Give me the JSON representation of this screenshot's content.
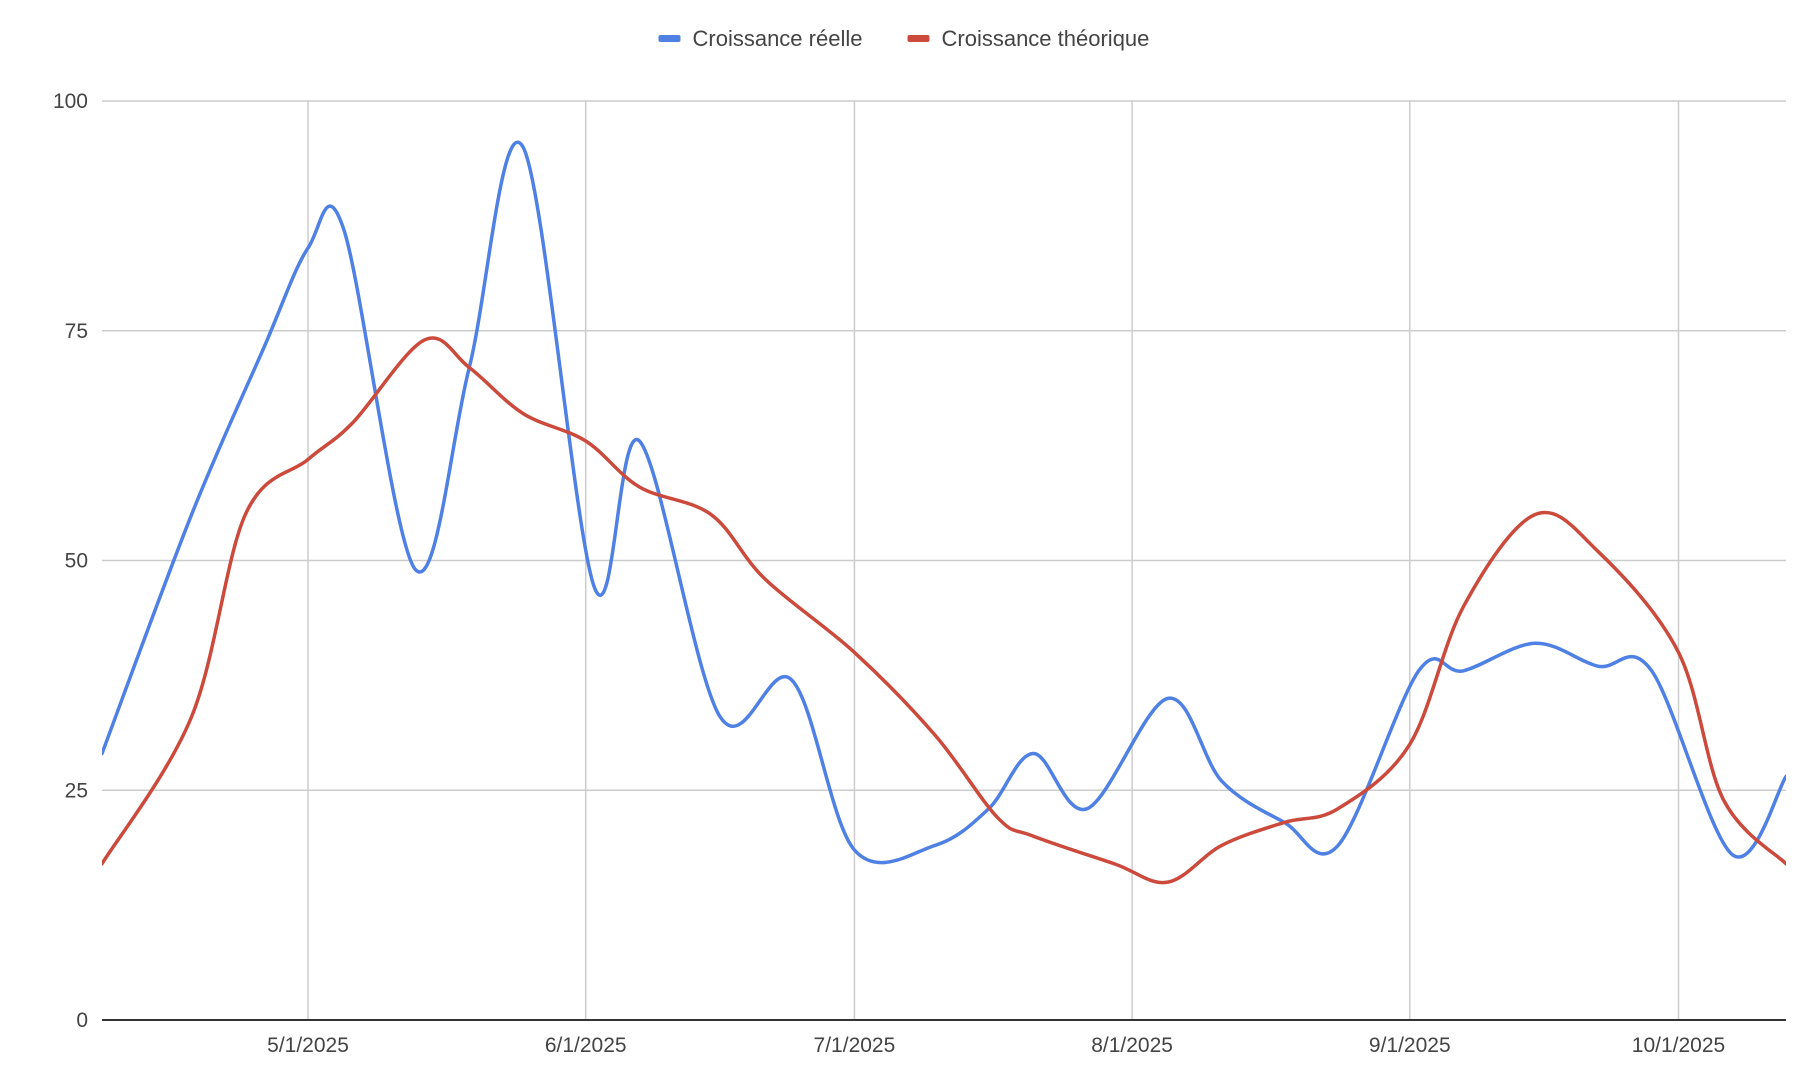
{
  "chart_data": {
    "type": "line",
    "title": "",
    "xlabel": "",
    "ylabel": "",
    "ylim": [
      0,
      100
    ],
    "y_ticks": [
      "0",
      "25",
      "50",
      "75",
      "100"
    ],
    "x_ticks": [
      "5/1/2025",
      "6/1/2025",
      "7/1/2025",
      "8/1/2025",
      "9/1/2025",
      "10/1/2025"
    ],
    "x_range": [
      "2025-04-08",
      "2025-10-13"
    ],
    "legend_position": "top-center",
    "grid": true,
    "smooth": true,
    "series": [
      {
        "name": "Croissance réelle",
        "color": "#4f81e5",
        "points": [
          {
            "x": "2025-04-08",
            "y": 29
          },
          {
            "x": "2025-04-18",
            "y": 55
          },
          {
            "x": "2025-04-26",
            "y": 73
          },
          {
            "x": "2025-05-01",
            "y": 84
          },
          {
            "x": "2025-05-05",
            "y": 86
          },
          {
            "x": "2025-05-13",
            "y": 49
          },
          {
            "x": "2025-05-19",
            "y": 71
          },
          {
            "x": "2025-05-25",
            "y": 95
          },
          {
            "x": "2025-06-02",
            "y": 47
          },
          {
            "x": "2025-06-07",
            "y": 63
          },
          {
            "x": "2025-06-16",
            "y": 33
          },
          {
            "x": "2025-06-24",
            "y": 37
          },
          {
            "x": "2025-07-01",
            "y": 18.5
          },
          {
            "x": "2025-07-10",
            "y": 19
          },
          {
            "x": "2025-07-16",
            "y": 23
          },
          {
            "x": "2025-07-21",
            "y": 29
          },
          {
            "x": "2025-07-27",
            "y": 23
          },
          {
            "x": "2025-08-05",
            "y": 35
          },
          {
            "x": "2025-08-11",
            "y": 26
          },
          {
            "x": "2025-08-18",
            "y": 21.5
          },
          {
            "x": "2025-08-24",
            "y": 19
          },
          {
            "x": "2025-09-02",
            "y": 38
          },
          {
            "x": "2025-09-07",
            "y": 38
          },
          {
            "x": "2025-09-15",
            "y": 41
          },
          {
            "x": "2025-09-22",
            "y": 38.5
          },
          {
            "x": "2025-09-28",
            "y": 38
          },
          {
            "x": "2025-10-07",
            "y": 18
          },
          {
            "x": "2025-10-13",
            "y": 26.5
          }
        ]
      },
      {
        "name": "Croissance théorique",
        "color": "#cc4a3c",
        "points": [
          {
            "x": "2025-04-08",
            "y": 17
          },
          {
            "x": "2025-04-18",
            "y": 33
          },
          {
            "x": "2025-04-24",
            "y": 55
          },
          {
            "x": "2025-05-01",
            "y": 61
          },
          {
            "x": "2025-05-06",
            "y": 65
          },
          {
            "x": "2025-05-14",
            "y": 74
          },
          {
            "x": "2025-05-19",
            "y": 71
          },
          {
            "x": "2025-05-25",
            "y": 66
          },
          {
            "x": "2025-06-01",
            "y": 63
          },
          {
            "x": "2025-06-07",
            "y": 58
          },
          {
            "x": "2025-06-15",
            "y": 55
          },
          {
            "x": "2025-06-21",
            "y": 48
          },
          {
            "x": "2025-07-01",
            "y": 40
          },
          {
            "x": "2025-07-10",
            "y": 31
          },
          {
            "x": "2025-07-17",
            "y": 22
          },
          {
            "x": "2025-07-21",
            "y": 20
          },
          {
            "x": "2025-07-30",
            "y": 17
          },
          {
            "x": "2025-08-05",
            "y": 15
          },
          {
            "x": "2025-08-11",
            "y": 19
          },
          {
            "x": "2025-08-18",
            "y": 21.5
          },
          {
            "x": "2025-08-24",
            "y": 23
          },
          {
            "x": "2025-09-01",
            "y": 30
          },
          {
            "x": "2025-09-07",
            "y": 45
          },
          {
            "x": "2025-09-15",
            "y": 55
          },
          {
            "x": "2025-09-22",
            "y": 51
          },
          {
            "x": "2025-10-01",
            "y": 40
          },
          {
            "x": "2025-10-06",
            "y": 24
          },
          {
            "x": "2025-10-13",
            "y": 17
          }
        ]
      }
    ]
  }
}
